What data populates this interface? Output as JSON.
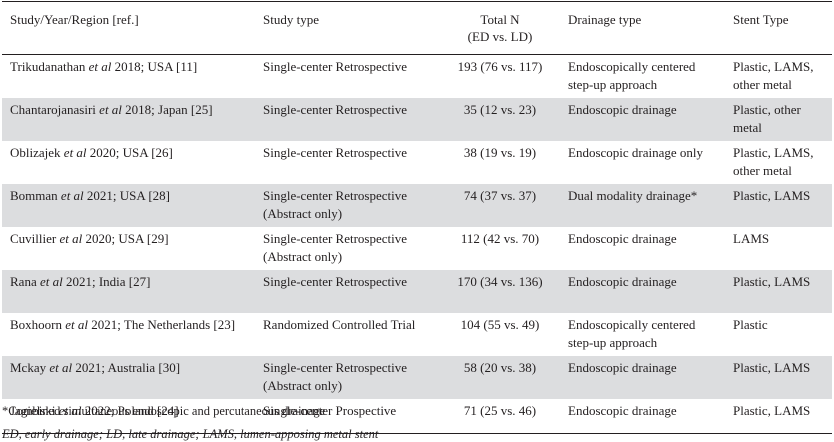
{
  "headers": {
    "study": "Study/Year/Region [ref.]",
    "type": "Study type",
    "n_line1": "Total N",
    "n_line2": "(ED vs. LD)",
    "drainage": "Drainage type",
    "stent": "Stent Type"
  },
  "rows": [
    {
      "author": "Trikudanathan",
      "etal": "et al",
      "rest": " 2018; USA [11]",
      "type": [
        "Single-center Retrospective"
      ],
      "n": "193 (76 vs. 117)",
      "drainage": [
        "Endoscopically centered",
        "step-up approach"
      ],
      "stent": [
        "Plastic, LAMS,",
        "other metal"
      ]
    },
    {
      "author": "Chantarojanasiri",
      "etal": "et al",
      "rest": " 2018; Japan [25]",
      "type": [
        "Single-center Retrospective"
      ],
      "n": "35 (12 vs. 23)",
      "drainage": [
        "Endoscopic drainage"
      ],
      "stent": [
        "Plastic, other",
        "metal"
      ]
    },
    {
      "author": "Oblizajek",
      "etal": "et al",
      "rest": " 2020; USA [26]",
      "type": [
        "Single-center Retrospective"
      ],
      "n": "38 (19 vs. 19)",
      "drainage": [
        "Endoscopic drainage only"
      ],
      "stent": [
        "Plastic, LAMS,",
        "other metal"
      ]
    },
    {
      "author": "Bomman",
      "etal": "et al",
      "rest": " 2021; USA [28]",
      "type": [
        "Single-center Retrospective",
        "(Abstract only)"
      ],
      "n": "74 (37 vs. 37)",
      "drainage": [
        "Dual modality drainage*"
      ],
      "stent": [
        "Plastic, LAMS"
      ]
    },
    {
      "author": "Cuvillier",
      "etal": "et al",
      "rest": " 2020; USA [29]",
      "type": [
        "Single-center Retrospective",
        "(Abstract only)"
      ],
      "n": "112 (42 vs. 70)",
      "drainage": [
        "Endoscopic drainage"
      ],
      "stent": [
        "LAMS"
      ]
    },
    {
      "author": "Rana",
      "etal": "et al",
      "rest": " 2021; India [27]",
      "type": [
        "Single-center Retrospective"
      ],
      "n": "170 (34 vs. 136)",
      "drainage": [
        "Endoscopic drainage"
      ],
      "stent": [
        "Plastic, LAMS"
      ]
    },
    {
      "author": "Boxhoorn",
      "etal": "et al",
      "rest": " 2021; The Netherlands [23]",
      "type": [
        "Randomized Controlled Trial"
      ],
      "n": "104 (55 vs. 49)",
      "drainage": [
        "Endoscopically centered",
        "step-up approach"
      ],
      "stent": [
        "Plastic"
      ]
    },
    {
      "author": "Mckay",
      "etal": "et al",
      "rest": " 2021; Australia [30]",
      "type": [
        "Single-center Retrospective",
        "(Abstract only)"
      ],
      "n": "58 (20 vs. 38)",
      "drainage": [
        "Endoscopic drainage"
      ],
      "stent": [
        "Plastic, LAMS"
      ]
    },
    {
      "author": "Jagielski",
      "etal": "et al",
      "rest": " 2022; Poland [24]",
      "type": [
        "Single-center Prospective"
      ],
      "n": "71 (25 vs. 46)",
      "drainage": [
        "Endoscopic drainage"
      ],
      "stent": [
        "Plastic, LAMS"
      ]
    }
  ],
  "footnote": "*Combined simultaneous endoscopic and percutaneous drainage",
  "abbreviations": "ED, early drainage; LD, late drainage; LAMS, lumen-apposing metal stent",
  "colors": {
    "text": "#231f20",
    "shade": "#dcdddf"
  }
}
